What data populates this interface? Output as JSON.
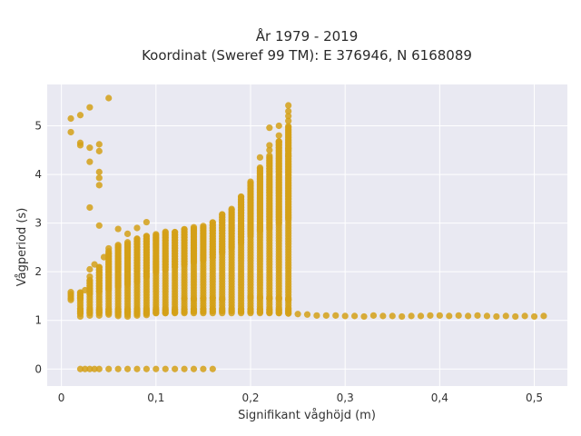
{
  "chart_data": {
    "type": "scatter",
    "title_lines": [
      "År 1979 - 2019",
      "Koordinat (Sweref 99 TM): E 376946, N 6168089"
    ],
    "xlabel": "Signifikant våghöjd (m)",
    "ylabel": "Vågperiod (s)",
    "xlim": [
      -0.015,
      0.535
    ],
    "ylim": [
      -0.35,
      5.85
    ],
    "xticks": [
      0,
      0.1,
      0.2,
      0.3,
      0.4,
      0.5
    ],
    "xtick_labels": [
      "0",
      "0,1",
      "0,2",
      "0,3",
      "0,4",
      "0,5"
    ],
    "yticks": [
      0,
      1,
      2,
      3,
      4,
      5
    ],
    "ytick_labels": [
      "0",
      "1",
      "2",
      "3",
      "4",
      "5"
    ],
    "grid": true,
    "background": "#e9e9f2",
    "marker_color": "#d4a017",
    "points": [
      [
        0.01,
        5.15
      ],
      [
        0.01,
        4.87
      ],
      [
        0.02,
        5.22
      ],
      [
        0.03,
        5.38
      ],
      [
        0.05,
        5.57
      ],
      [
        0.02,
        4.65
      ],
      [
        0.02,
        4.6
      ],
      [
        0.03,
        4.55
      ],
      [
        0.04,
        4.62
      ],
      [
        0.04,
        4.48
      ],
      [
        0.03,
        4.26
      ],
      [
        0.04,
        4.05
      ],
      [
        0.04,
        3.93
      ],
      [
        0.04,
        3.78
      ],
      [
        0.03,
        3.32
      ],
      [
        0.04,
        2.95
      ],
      [
        0.06,
        2.88
      ],
      [
        0.07,
        2.78
      ],
      [
        0.08,
        2.9
      ],
      [
        0.09,
        3.02
      ],
      [
        0.01,
        1.58
      ],
      [
        0.01,
        1.54
      ],
      [
        0.01,
        1.5
      ],
      [
        0.01,
        1.46
      ],
      [
        0.01,
        1.42
      ],
      [
        0.06,
        1.09
      ],
      [
        0.07,
        1.08
      ],
      [
        0.08,
        1.1
      ],
      [
        0.09,
        1.11
      ],
      [
        0.21,
        4.35
      ],
      [
        0.22,
        4.5
      ],
      [
        0.22,
        4.6
      ],
      [
        0.23,
        4.68
      ],
      [
        0.23,
        4.8
      ],
      [
        0.24,
        4.52
      ],
      [
        0.24,
        4.38
      ],
      [
        0.22,
        4.96
      ],
      [
        0.24,
        5.42
      ],
      [
        0.24,
        5.3
      ],
      [
        0.24,
        5.2
      ],
      [
        0.24,
        5.1
      ],
      [
        0.23,
        5.0
      ],
      [
        0.2,
        1.48
      ],
      [
        0.21,
        1.47
      ],
      [
        0.22,
        1.46
      ],
      [
        0.23,
        1.45
      ],
      [
        0.24,
        1.44
      ],
      [
        0.13,
        1.45
      ],
      [
        0.14,
        1.44
      ],
      [
        0.15,
        1.45
      ],
      [
        0.16,
        1.46
      ],
      [
        0.17,
        1.44
      ],
      [
        0.23,
        1.46
      ],
      [
        0.22,
        1.45
      ],
      [
        0.24,
        1.42
      ],
      [
        0.25,
        1.13
      ],
      [
        0.26,
        1.12
      ],
      [
        0.27,
        1.1
      ],
      [
        0.28,
        1.1
      ],
      [
        0.29,
        1.1
      ],
      [
        0.3,
        1.09
      ],
      [
        0.31,
        1.09
      ],
      [
        0.32,
        1.08
      ],
      [
        0.33,
        1.1
      ],
      [
        0.34,
        1.09
      ],
      [
        0.35,
        1.09
      ],
      [
        0.36,
        1.08
      ],
      [
        0.37,
        1.09
      ],
      [
        0.38,
        1.09
      ],
      [
        0.39,
        1.1
      ],
      [
        0.4,
        1.1
      ],
      [
        0.41,
        1.09
      ],
      [
        0.42,
        1.1
      ],
      [
        0.43,
        1.09
      ],
      [
        0.44,
        1.1
      ],
      [
        0.45,
        1.09
      ],
      [
        0.46,
        1.08
      ],
      [
        0.47,
        1.09
      ],
      [
        0.48,
        1.08
      ],
      [
        0.49,
        1.09
      ],
      [
        0.5,
        1.08
      ],
      [
        0.51,
        1.09
      ],
      [
        0.025,
        1.62
      ],
      [
        0.03,
        1.9
      ],
      [
        0.03,
        2.05
      ],
      [
        0.035,
        2.15
      ],
      [
        0.045,
        2.3
      ],
      [
        0.05,
        2.48
      ]
    ],
    "columns": [
      {
        "x": 0.02,
        "lo": 1.08,
        "hi": 1.62
      },
      {
        "x": 0.03,
        "lo": 1.1,
        "hi": 1.85
      },
      {
        "x": 0.04,
        "lo": 1.1,
        "hi": 2.1
      },
      {
        "x": 0.05,
        "lo": 1.12,
        "hi": 2.4
      },
      {
        "x": 0.06,
        "lo": 1.12,
        "hi": 2.55
      },
      {
        "x": 0.07,
        "lo": 1.12,
        "hi": 2.62
      },
      {
        "x": 0.08,
        "lo": 1.13,
        "hi": 2.7
      },
      {
        "x": 0.09,
        "lo": 1.14,
        "hi": 2.75
      },
      {
        "x": 0.1,
        "lo": 1.15,
        "hi": 2.78
      },
      {
        "x": 0.11,
        "lo": 1.15,
        "hi": 2.82
      },
      {
        "x": 0.12,
        "lo": 1.16,
        "hi": 2.86
      },
      {
        "x": 0.13,
        "lo": 1.17,
        "hi": 2.9
      },
      {
        "x": 0.14,
        "lo": 1.18,
        "hi": 2.92
      },
      {
        "x": 0.15,
        "lo": 1.18,
        "hi": 2.95
      },
      {
        "x": 0.16,
        "lo": 1.19,
        "hi": 3.05
      },
      {
        "x": 0.17,
        "lo": 1.2,
        "hi": 3.2
      },
      {
        "x": 0.18,
        "lo": 1.2,
        "hi": 3.3
      },
      {
        "x": 0.19,
        "lo": 1.18,
        "hi": 3.55
      },
      {
        "x": 0.2,
        "lo": 1.18,
        "hi": 3.85
      },
      {
        "x": 0.21,
        "lo": 1.17,
        "hi": 4.15
      },
      {
        "x": 0.22,
        "lo": 1.16,
        "hi": 4.4
      },
      {
        "x": 0.23,
        "lo": 1.15,
        "hi": 4.7
      },
      {
        "x": 0.24,
        "lo": 1.14,
        "hi": 5.0
      }
    ],
    "upper_clusters": [
      {
        "x": 0.02,
        "lo": 1.45,
        "hi": 1.6
      },
      {
        "x": 0.03,
        "lo": 1.55,
        "hi": 1.85
      },
      {
        "x": 0.04,
        "lo": 1.6,
        "hi": 2.1
      },
      {
        "x": 0.05,
        "lo": 1.65,
        "hi": 2.45
      },
      {
        "x": 0.06,
        "lo": 1.7,
        "hi": 2.55
      },
      {
        "x": 0.07,
        "lo": 1.75,
        "hi": 2.62
      },
      {
        "x": 0.08,
        "lo": 1.8,
        "hi": 2.7
      },
      {
        "x": 0.09,
        "lo": 1.9,
        "hi": 2.75
      },
      {
        "x": 0.1,
        "lo": 2.0,
        "hi": 2.78
      },
      {
        "x": 0.11,
        "lo": 2.05,
        "hi": 2.82
      },
      {
        "x": 0.12,
        "lo": 2.1,
        "hi": 2.86
      },
      {
        "x": 0.13,
        "lo": 2.15,
        "hi": 2.9
      },
      {
        "x": 0.14,
        "lo": 2.2,
        "hi": 2.92
      },
      {
        "x": 0.15,
        "lo": 2.25,
        "hi": 2.95
      },
      {
        "x": 0.16,
        "lo": 2.3,
        "hi": 3.05
      },
      {
        "x": 0.17,
        "lo": 2.4,
        "hi": 3.2
      },
      {
        "x": 0.18,
        "lo": 2.5,
        "hi": 3.3
      },
      {
        "x": 0.19,
        "lo": 2.6,
        "hi": 3.55
      },
      {
        "x": 0.2,
        "lo": 2.75,
        "hi": 3.85
      },
      {
        "x": 0.21,
        "lo": 2.85,
        "hi": 4.15
      },
      {
        "x": 0.22,
        "lo": 2.9,
        "hi": 4.4
      },
      {
        "x": 0.23,
        "lo": 3.0,
        "hi": 4.7
      },
      {
        "x": 0.24,
        "lo": 3.1,
        "hi": 5.0
      }
    ],
    "zero_row": {
      "y": 0,
      "x": [
        0.02,
        0.025,
        0.03,
        0.035,
        0.04,
        0.05,
        0.06,
        0.07,
        0.08,
        0.09,
        0.1,
        0.11,
        0.12,
        0.13,
        0.14,
        0.15,
        0.16
      ]
    },
    "one_row": {
      "y": 1.19,
      "x": [
        0.02,
        0.03,
        0.04,
        0.05,
        0.06,
        0.07,
        0.08,
        0.09,
        0.1,
        0.11,
        0.12,
        0.13,
        0.14,
        0.15,
        0.16,
        0.17,
        0.18,
        0.19,
        0.2,
        0.21,
        0.22,
        0.23,
        0.24
      ]
    }
  }
}
